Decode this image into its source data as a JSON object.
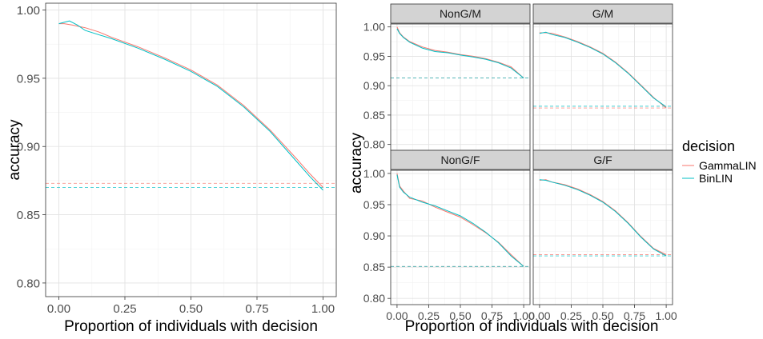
{
  "colors": {
    "panel_bg": "#ffffff",
    "grid_major": "#e3e3e3",
    "grid_minor": "#f2f2f2",
    "strip_bg": "#d3d3d3",
    "axis_text": "#4d4d4d",
    "border": "#333333"
  },
  "legend": {
    "title": "decision",
    "items": [
      {
        "label": "GammaLIN",
        "color": "#F8766D"
      },
      {
        "label": "BinLIN",
        "color": "#00BFC4"
      }
    ]
  },
  "chart_data": [
    {
      "type": "line",
      "title": "",
      "xlabel": "Proportion of individuals with decision",
      "ylabel": "accuracy",
      "xlim": [
        -0.05,
        1.05
      ],
      "ylim": [
        0.79,
        1.005
      ],
      "xticks": [
        0.0,
        0.25,
        0.5,
        0.75,
        1.0
      ],
      "xtick_labels": [
        "0.00",
        "0.25",
        "0.50",
        "0.75",
        "1.00"
      ],
      "yticks": [
        0.8,
        0.85,
        0.9,
        0.95,
        1.0
      ],
      "ytick_labels": [
        "0.80",
        "0.85",
        "0.90",
        "0.95",
        "1.00"
      ],
      "grid": true,
      "series": [
        {
          "name": "GammaLIN",
          "color": "#F8766D",
          "x": [
            0.0,
            0.02,
            0.05,
            0.1,
            0.15,
            0.2,
            0.3,
            0.4,
            0.5,
            0.6,
            0.7,
            0.8,
            0.9,
            0.95,
            1.0
          ],
          "y": [
            0.99,
            0.99,
            0.989,
            0.987,
            0.984,
            0.98,
            0.973,
            0.965,
            0.956,
            0.945,
            0.93,
            0.912,
            0.891,
            0.88,
            0.87
          ],
          "baseline": 0.873
        },
        {
          "name": "BinLIN",
          "color": "#00BFC4",
          "x": [
            0.0,
            0.02,
            0.04,
            0.07,
            0.1,
            0.15,
            0.2,
            0.3,
            0.4,
            0.5,
            0.6,
            0.7,
            0.8,
            0.9,
            0.95,
            1.0
          ],
          "y": [
            0.99,
            0.991,
            0.992,
            0.989,
            0.985,
            0.982,
            0.979,
            0.972,
            0.964,
            0.955,
            0.944,
            0.929,
            0.911,
            0.889,
            0.878,
            0.868
          ],
          "baseline": 0.87
        }
      ]
    },
    {
      "type": "line",
      "facet": "NonG/M",
      "xlim": [
        -0.05,
        1.05
      ],
      "ylim": [
        0.79,
        1.005
      ],
      "series": [
        {
          "name": "GammaLIN",
          "color": "#F8766D",
          "x": [
            0.0,
            0.02,
            0.05,
            0.1,
            0.2,
            0.3,
            0.4,
            0.5,
            0.6,
            0.7,
            0.8,
            0.9,
            1.0
          ],
          "y": [
            1.0,
            0.99,
            0.983,
            0.975,
            0.966,
            0.96,
            0.957,
            0.953,
            0.95,
            0.946,
            0.94,
            0.932,
            0.913
          ],
          "baseline": 0.913
        },
        {
          "name": "BinLIN",
          "color": "#00BFC4",
          "x": [
            0.0,
            0.02,
            0.05,
            0.1,
            0.2,
            0.3,
            0.4,
            0.5,
            0.6,
            0.7,
            0.8,
            0.9,
            1.0
          ],
          "y": [
            0.997,
            0.989,
            0.982,
            0.974,
            0.964,
            0.958,
            0.956,
            0.952,
            0.949,
            0.945,
            0.939,
            0.93,
            0.913
          ],
          "baseline": 0.913
        }
      ]
    },
    {
      "type": "line",
      "facet": "G/M",
      "xlim": [
        -0.05,
        1.05
      ],
      "ylim": [
        0.79,
        1.005
      ],
      "series": [
        {
          "name": "GammaLIN",
          "color": "#F8766D",
          "x": [
            0.0,
            0.05,
            0.1,
            0.2,
            0.3,
            0.4,
            0.5,
            0.6,
            0.7,
            0.8,
            0.9,
            1.0
          ],
          "y": [
            0.99,
            0.99,
            0.989,
            0.983,
            0.975,
            0.966,
            0.955,
            0.94,
            0.922,
            0.901,
            0.88,
            0.862
          ],
          "baseline": 0.862
        },
        {
          "name": "BinLIN",
          "color": "#00BFC4",
          "x": [
            0.0,
            0.05,
            0.1,
            0.2,
            0.3,
            0.4,
            0.5,
            0.6,
            0.7,
            0.8,
            0.9,
            1.0
          ],
          "y": [
            0.989,
            0.991,
            0.987,
            0.982,
            0.974,
            0.965,
            0.954,
            0.939,
            0.921,
            0.9,
            0.879,
            0.864
          ],
          "baseline": 0.865
        }
      ]
    },
    {
      "type": "line",
      "facet": "NonG/F",
      "xlim": [
        -0.05,
        1.05
      ],
      "ylim": [
        0.79,
        1.005
      ],
      "series": [
        {
          "name": "GammaLIN",
          "color": "#F8766D",
          "x": [
            0.0,
            0.02,
            0.05,
            0.1,
            0.2,
            0.3,
            0.4,
            0.5,
            0.6,
            0.7,
            0.8,
            0.9,
            1.0
          ],
          "y": [
            1.0,
            0.98,
            0.972,
            0.96,
            0.956,
            0.946,
            0.938,
            0.93,
            0.918,
            0.905,
            0.89,
            0.87,
            0.851
          ],
          "baseline": 0.851
        },
        {
          "name": "BinLIN",
          "color": "#00BFC4",
          "x": [
            0.0,
            0.02,
            0.05,
            0.1,
            0.2,
            0.3,
            0.4,
            0.5,
            0.6,
            0.7,
            0.8,
            0.9,
            1.0
          ],
          "y": [
            0.998,
            0.978,
            0.97,
            0.962,
            0.954,
            0.948,
            0.94,
            0.932,
            0.92,
            0.906,
            0.889,
            0.868,
            0.851
          ],
          "baseline": 0.851
        }
      ]
    },
    {
      "type": "line",
      "facet": "G/F",
      "xlim": [
        -0.05,
        1.05
      ],
      "ylim": [
        0.79,
        1.005
      ],
      "series": [
        {
          "name": "GammaLIN",
          "color": "#F8766D",
          "x": [
            0.0,
            0.05,
            0.1,
            0.2,
            0.3,
            0.4,
            0.5,
            0.6,
            0.7,
            0.8,
            0.9,
            1.0
          ],
          "y": [
            0.989,
            0.99,
            0.986,
            0.982,
            0.975,
            0.966,
            0.955,
            0.94,
            0.921,
            0.899,
            0.88,
            0.87
          ],
          "baseline": 0.87
        },
        {
          "name": "BinLIN",
          "color": "#00BFC4",
          "x": [
            0.0,
            0.05,
            0.1,
            0.2,
            0.3,
            0.4,
            0.5,
            0.6,
            0.7,
            0.8,
            0.9,
            1.0
          ],
          "y": [
            0.99,
            0.989,
            0.986,
            0.981,
            0.974,
            0.965,
            0.954,
            0.939,
            0.92,
            0.898,
            0.879,
            0.868
          ],
          "baseline": 0.868
        }
      ]
    }
  ],
  "right_figure": {
    "xlabel": "Proportion of individuals with decision",
    "ylabel": "accuracy",
    "xtick_labels": [
      "0.00",
      "0.25",
      "0.50",
      "0.75",
      "1.00"
    ],
    "ytick_labels": [
      "0.80",
      "0.85",
      "0.90",
      "0.95",
      "1.00"
    ],
    "yticks": [
      0.8,
      0.85,
      0.9,
      0.95,
      1.0
    ],
    "xticks": [
      0.0,
      0.25,
      0.5,
      0.75,
      1.0
    ]
  }
}
